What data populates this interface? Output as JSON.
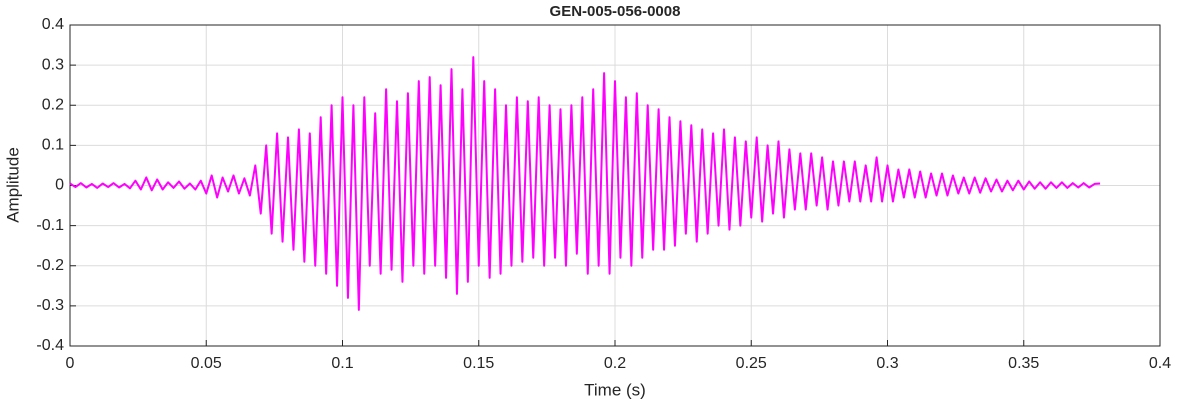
{
  "chart_data": {
    "type": "line",
    "title": "GEN-005-056-0008",
    "x_label": "Time (s)",
    "y_label": "Amplitude",
    "grid": true,
    "xlim": [
      0,
      0.4
    ],
    "xticks": [
      0,
      0.05,
      0.1,
      0.15,
      0.2,
      0.25,
      0.3,
      0.35,
      0.4
    ],
    "ylim": [
      -0.4,
      0.4
    ],
    "yticks": [
      -0.4,
      -0.3,
      -0.2,
      -0.1,
      0,
      0.1,
      0.2,
      0.3,
      0.4
    ],
    "x": [
      0,
      0.002,
      0.004,
      0.006,
      0.008,
      0.01,
      0.012,
      0.014,
      0.016,
      0.018,
      0.02,
      0.022,
      0.024,
      0.026,
      0.028,
      0.03,
      0.032,
      0.034,
      0.036,
      0.038,
      0.04,
      0.042,
      0.044,
      0.046,
      0.048,
      0.05,
      0.052,
      0.054,
      0.056,
      0.058,
      0.06,
      0.062,
      0.064,
      0.066,
      0.068,
      0.07,
      0.072,
      0.074,
      0.076,
      0.078,
      0.08,
      0.082,
      0.084,
      0.086,
      0.088,
      0.09,
      0.092,
      0.094,
      0.096,
      0.098,
      0.1,
      0.102,
      0.104,
      0.106,
      0.108,
      0.11,
      0.112,
      0.114,
      0.116,
      0.118,
      0.12,
      0.122,
      0.124,
      0.126,
      0.128,
      0.13,
      0.132,
      0.134,
      0.136,
      0.138,
      0.14,
      0.142,
      0.144,
      0.146,
      0.148,
      0.15,
      0.152,
      0.154,
      0.156,
      0.158,
      0.16,
      0.162,
      0.164,
      0.166,
      0.168,
      0.17,
      0.172,
      0.174,
      0.176,
      0.178,
      0.18,
      0.182,
      0.184,
      0.186,
      0.188,
      0.19,
      0.192,
      0.194,
      0.196,
      0.198,
      0.2,
      0.202,
      0.204,
      0.206,
      0.208,
      0.21,
      0.212,
      0.214,
      0.216,
      0.218,
      0.22,
      0.222,
      0.224,
      0.226,
      0.228,
      0.23,
      0.232,
      0.234,
      0.236,
      0.238,
      0.24,
      0.242,
      0.244,
      0.246,
      0.248,
      0.25,
      0.252,
      0.254,
      0.256,
      0.258,
      0.26,
      0.262,
      0.264,
      0.266,
      0.268,
      0.27,
      0.272,
      0.274,
      0.276,
      0.278,
      0.28,
      0.282,
      0.284,
      0.286,
      0.288,
      0.29,
      0.292,
      0.294,
      0.296,
      0.298,
      0.3,
      0.302,
      0.304,
      0.306,
      0.308,
      0.31,
      0.312,
      0.314,
      0.316,
      0.318,
      0.32,
      0.322,
      0.324,
      0.326,
      0.328,
      0.33,
      0.332,
      0.334,
      0.336,
      0.338,
      0.34,
      0.342,
      0.344,
      0.346,
      0.348,
      0.35,
      0.352,
      0.354,
      0.356,
      0.358,
      0.36,
      0.362,
      0.364,
      0.366,
      0.368,
      0.37,
      0.372,
      0.374,
      0.376,
      0.378
    ],
    "series": [
      {
        "color": "#ff00ff",
        "values": [
          0.005,
          -0.004,
          0.006,
          -0.005,
          0.004,
          -0.006,
          0.005,
          -0.004,
          0.006,
          -0.005,
          0.004,
          -0.007,
          0.012,
          -0.01,
          0.02,
          -0.012,
          0.015,
          -0.01,
          0.008,
          -0.006,
          0.01,
          -0.008,
          0.005,
          -0.01,
          0.012,
          -0.02,
          0.025,
          -0.03,
          0.02,
          -0.015,
          0.025,
          -0.02,
          0.018,
          -0.025,
          0.05,
          -0.07,
          0.1,
          -0.12,
          0.13,
          -0.14,
          0.12,
          -0.16,
          0.14,
          -0.19,
          0.13,
          -0.2,
          0.17,
          -0.22,
          0.2,
          -0.25,
          0.22,
          -0.28,
          0.2,
          -0.31,
          0.22,
          -0.2,
          0.18,
          -0.22,
          0.24,
          -0.21,
          0.21,
          -0.24,
          0.23,
          -0.2,
          0.26,
          -0.22,
          0.27,
          -0.2,
          0.25,
          -0.23,
          0.29,
          -0.27,
          0.24,
          -0.24,
          0.32,
          -0.2,
          0.26,
          -0.23,
          0.24,
          -0.22,
          0.2,
          -0.2,
          0.22,
          -0.19,
          0.21,
          -0.18,
          0.22,
          -0.2,
          0.2,
          -0.18,
          0.19,
          -0.2,
          0.2,
          -0.17,
          0.22,
          -0.22,
          0.24,
          -0.2,
          0.28,
          -0.22,
          0.26,
          -0.18,
          0.22,
          -0.2,
          0.23,
          -0.18,
          0.2,
          -0.16,
          0.19,
          -0.16,
          0.17,
          -0.15,
          0.16,
          -0.12,
          0.15,
          -0.14,
          0.14,
          -0.12,
          0.13,
          -0.1,
          0.14,
          -0.11,
          0.12,
          -0.1,
          0.11,
          -0.08,
          0.12,
          -0.09,
          0.1,
          -0.07,
          0.11,
          -0.08,
          0.09,
          -0.06,
          0.08,
          -0.06,
          0.08,
          -0.05,
          0.07,
          -0.06,
          0.06,
          -0.05,
          0.06,
          -0.04,
          0.06,
          -0.04,
          0.05,
          -0.04,
          0.07,
          -0.04,
          0.05,
          -0.04,
          0.04,
          -0.03,
          0.04,
          -0.03,
          0.035,
          -0.03,
          0.03,
          -0.025,
          0.03,
          -0.025,
          0.025,
          -0.02,
          0.02,
          -0.02,
          0.02,
          -0.018,
          0.018,
          -0.015,
          0.015,
          -0.015,
          0.012,
          -0.012,
          0.012,
          -0.01,
          0.01,
          -0.008,
          0.008,
          -0.008,
          0.008,
          -0.006,
          0.008,
          -0.006,
          0.006,
          -0.005,
          0.006,
          -0.005,
          0.004,
          0.005
        ]
      }
    ]
  }
}
